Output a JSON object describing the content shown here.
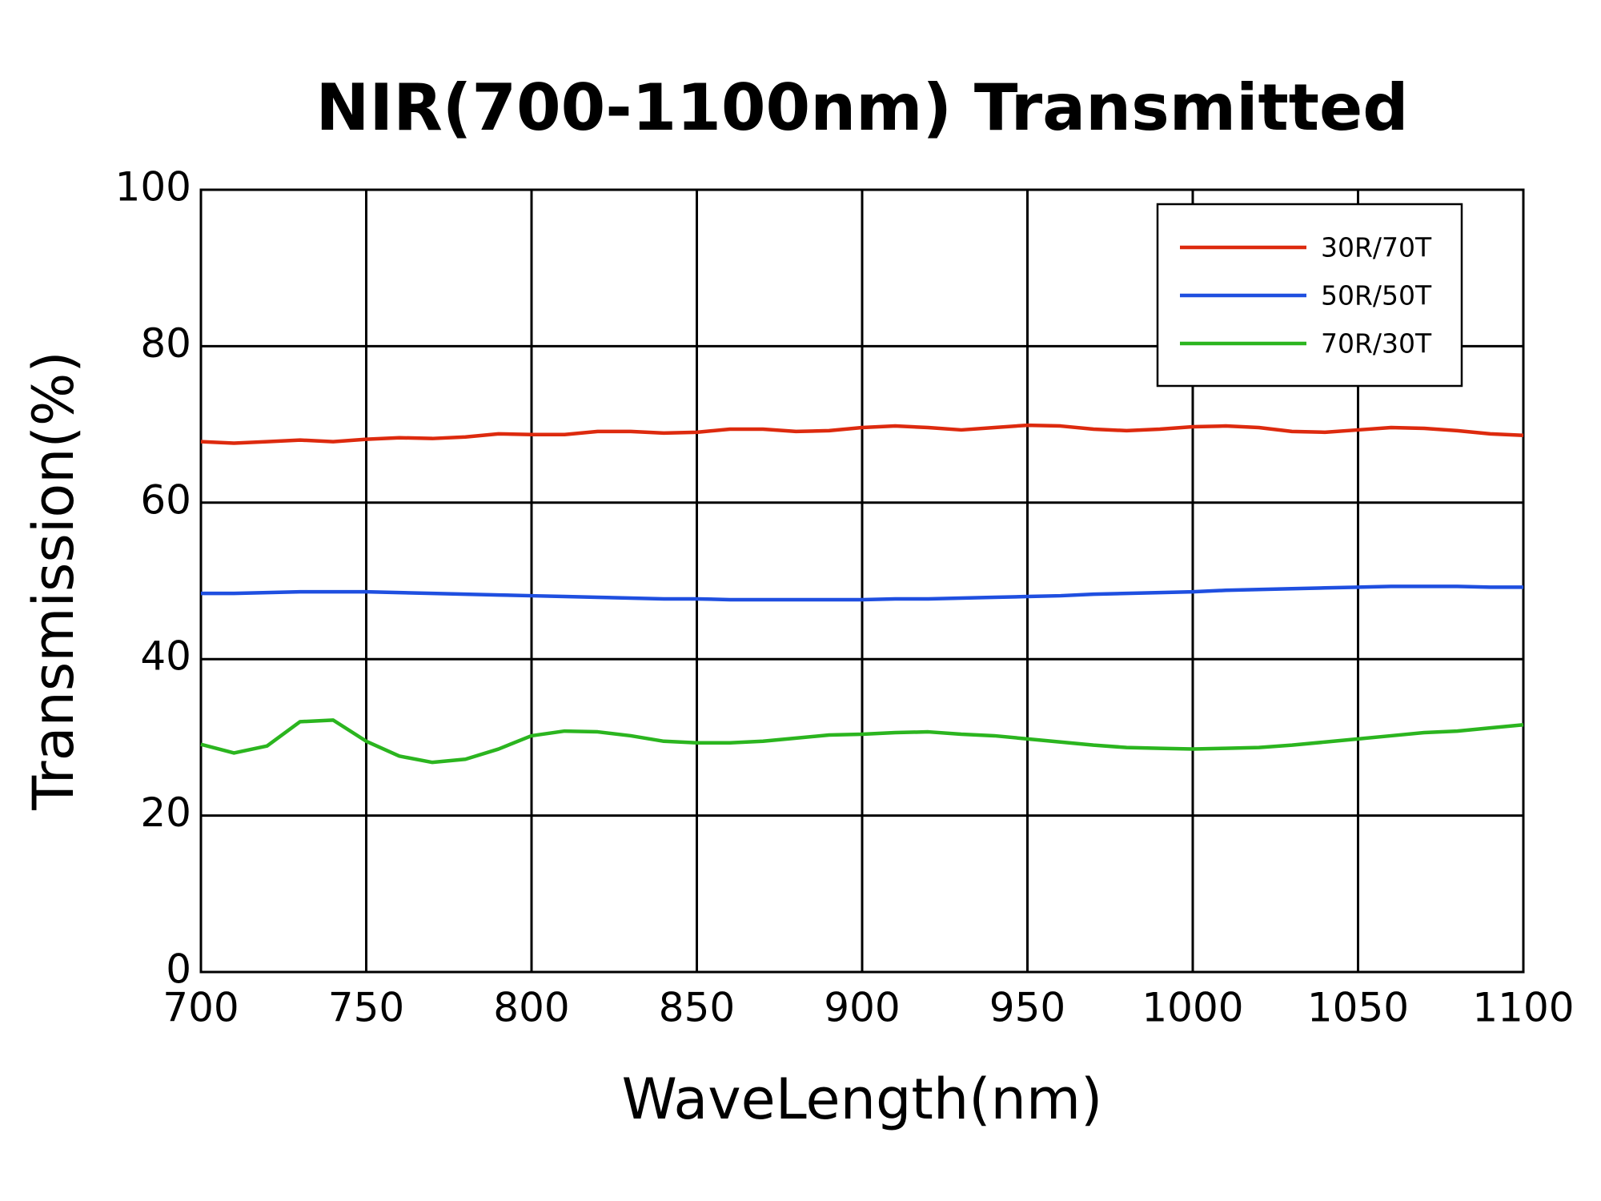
{
  "chart_data": {
    "type": "line",
    "title": "NIR(700-1100nm) Transmitted",
    "xlabel": "WaveLength(nm)",
    "ylabel": "Transmission(%)",
    "x": [
      700,
      710,
      720,
      730,
      740,
      750,
      760,
      770,
      780,
      790,
      800,
      810,
      820,
      830,
      840,
      850,
      860,
      870,
      880,
      890,
      900,
      910,
      920,
      930,
      940,
      950,
      960,
      970,
      980,
      990,
      1000,
      1010,
      1020,
      1030,
      1040,
      1050,
      1060,
      1070,
      1080,
      1090,
      1100
    ],
    "series": [
      {
        "name": "30R/70T",
        "color": "#dd2a0e",
        "values": [
          67.8,
          67.6,
          67.8,
          68.0,
          67.8,
          68.1,
          68.3,
          68.2,
          68.4,
          68.8,
          68.7,
          68.7,
          69.1,
          69.1,
          68.9,
          69.0,
          69.4,
          69.4,
          69.1,
          69.2,
          69.6,
          69.8,
          69.6,
          69.3,
          69.6,
          69.9,
          69.8,
          69.4,
          69.2,
          69.4,
          69.7,
          69.8,
          69.6,
          69.1,
          69.0,
          69.3,
          69.6,
          69.5,
          69.2,
          68.8,
          68.6
        ]
      },
      {
        "name": "50R/50T",
        "color": "#1f4fe0",
        "values": [
          48.4,
          48.4,
          48.5,
          48.6,
          48.6,
          48.6,
          48.5,
          48.4,
          48.3,
          48.2,
          48.1,
          48.0,
          47.9,
          47.8,
          47.7,
          47.7,
          47.6,
          47.6,
          47.6,
          47.6,
          47.6,
          47.7,
          47.7,
          47.8,
          47.9,
          48.0,
          48.1,
          48.3,
          48.4,
          48.5,
          48.6,
          48.8,
          48.9,
          49.0,
          49.1,
          49.2,
          49.3,
          49.3,
          49.3,
          49.2,
          49.2
        ]
      },
      {
        "name": "70R/30T",
        "color": "#2bb51f",
        "values": [
          29.1,
          28.0,
          28.9,
          32.0,
          32.2,
          29.5,
          27.6,
          26.8,
          27.2,
          28.5,
          30.2,
          30.8,
          30.7,
          30.2,
          29.5,
          29.3,
          29.3,
          29.5,
          29.9,
          30.3,
          30.4,
          30.6,
          30.7,
          30.4,
          30.2,
          29.8,
          29.4,
          29.0,
          28.7,
          28.6,
          28.5,
          28.6,
          28.7,
          29.0,
          29.4,
          29.8,
          30.2,
          30.6,
          30.8,
          31.2,
          31.6
        ]
      }
    ],
    "xlim": [
      700,
      1100
    ],
    "xticks": [
      700,
      750,
      800,
      850,
      900,
      950,
      1000,
      1050,
      1100
    ],
    "ylim": [
      0,
      100
    ],
    "yticks": [
      0,
      20,
      40,
      60,
      80,
      100
    ],
    "grid": true,
    "legend": "upper right"
  }
}
